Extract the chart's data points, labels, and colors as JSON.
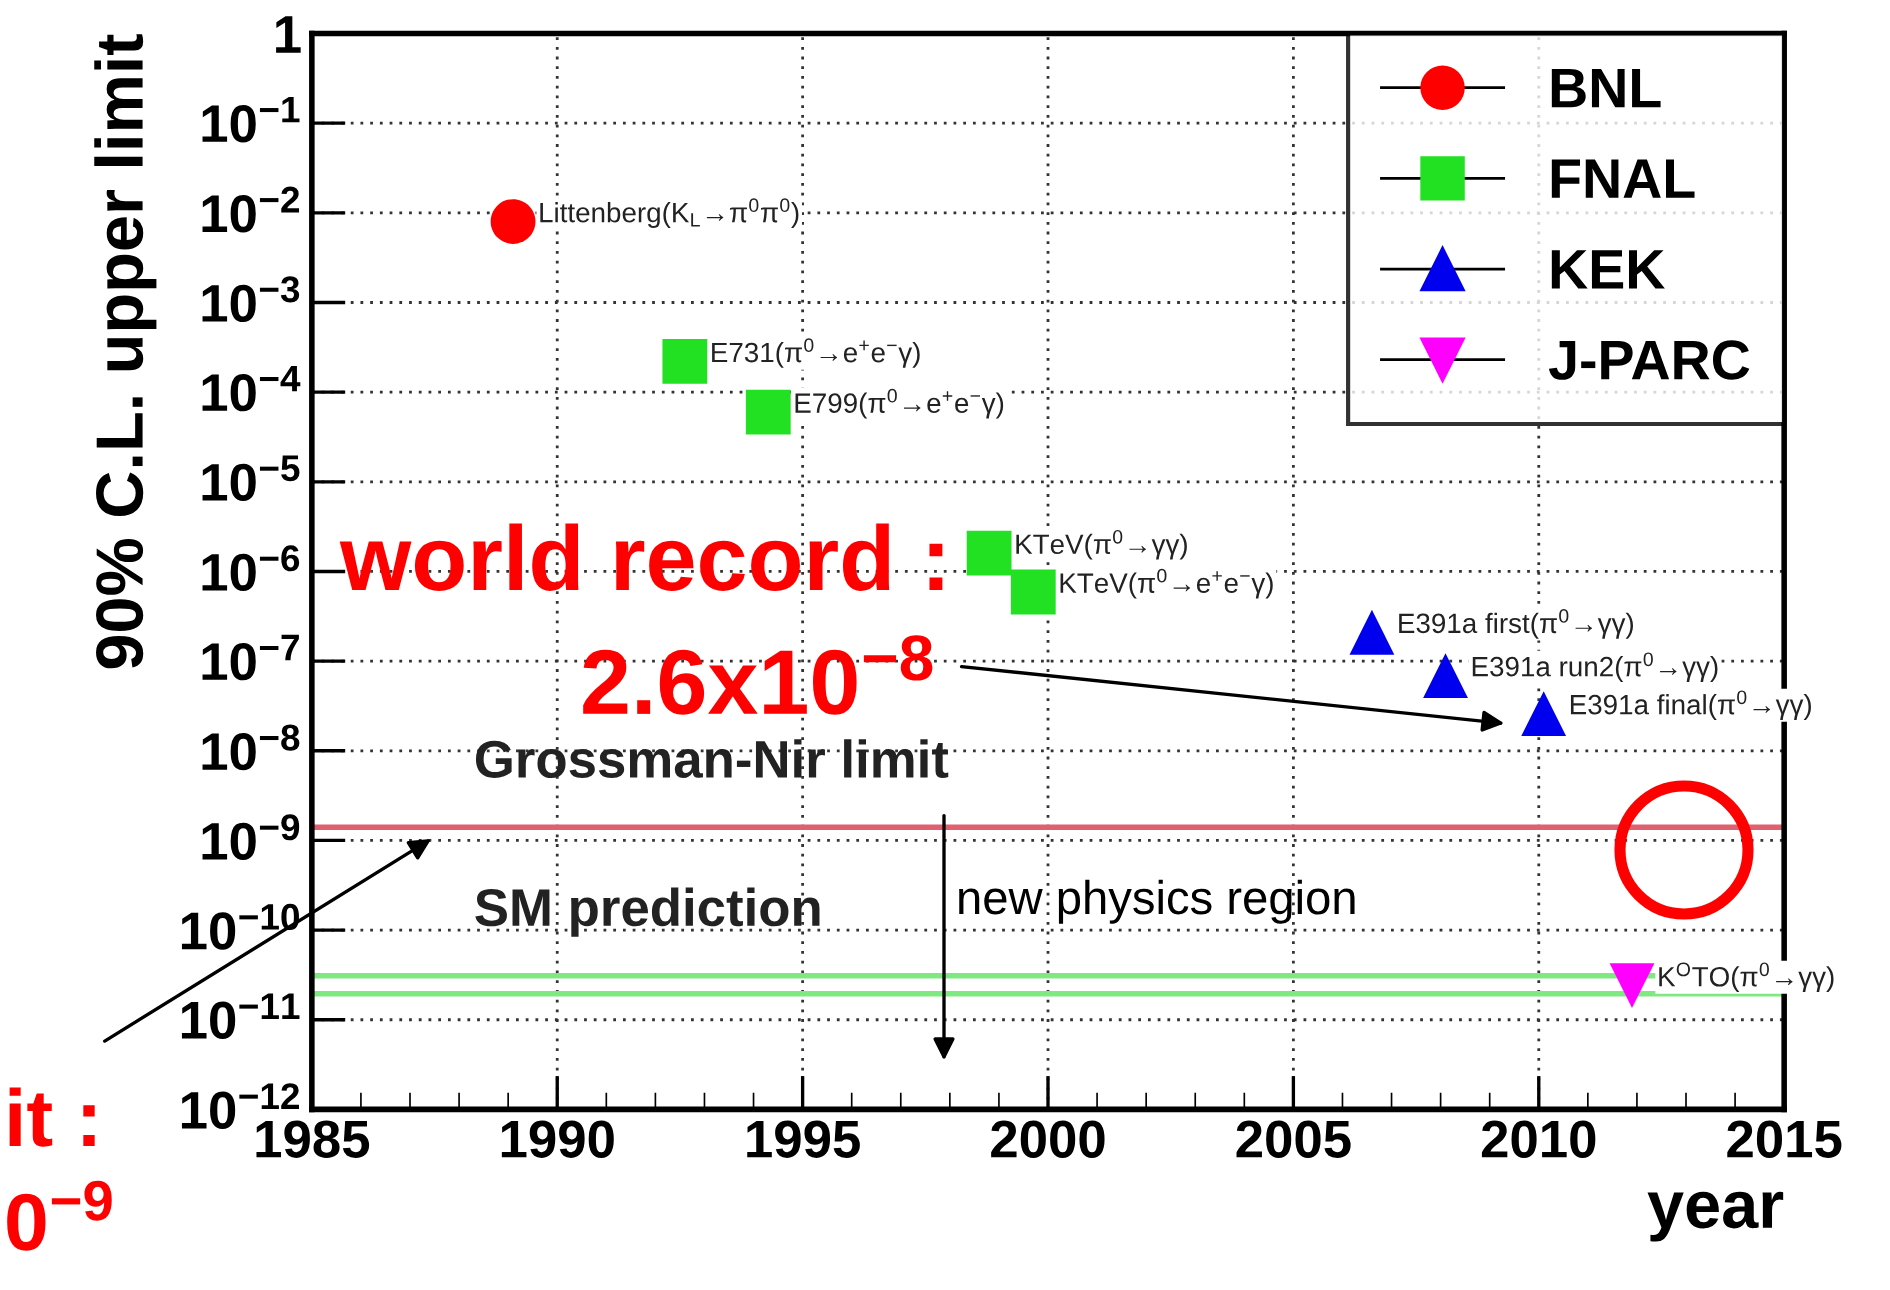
{
  "chart_data": {
    "type": "scatter",
    "xlabel": "year",
    "ylabel": "90% C.L. upper limit",
    "xlim": [
      1985,
      2015
    ],
    "xticks": [
      1985,
      1990,
      1995,
      2000,
      2005,
      2010,
      2015
    ],
    "log": "y",
    "ylim": [
      1e-12,
      1
    ],
    "yticks": [
      {
        "value": 1e-12,
        "label": "10$^{−12}$"
      },
      {
        "value": 1e-11,
        "label": "10$^{−11}$"
      },
      {
        "value": 1e-10,
        "label": "10$^{−10}$"
      },
      {
        "value": 1e-09,
        "label": "10$^{−9}$"
      },
      {
        "value": 1e-08,
        "label": "10$^{−8}$"
      },
      {
        "value": 1e-07,
        "label": "10$^{−7}$"
      },
      {
        "value": 1e-06,
        "label": "10$^{−6}$"
      },
      {
        "value": 1e-05,
        "label": "10$^{−5}$"
      },
      {
        "value": 0.0001,
        "label": "10$^{−4}$"
      },
      {
        "value": 0.001,
        "label": "10$^{−3}$"
      },
      {
        "value": 0.01,
        "label": "10$^{−2}$"
      },
      {
        "value": 0.1,
        "label": "10$^{−1}$"
      },
      {
        "value": 1,
        "label": "1"
      }
    ],
    "grid": true,
    "legend": "top right",
    "series": [
      {
        "name": "BNL",
        "color": "#ff0000",
        "marker": "circle",
        "x": [
          1989.1
        ],
        "values": [
          0.008
        ]
      },
      {
        "name": "FNAL",
        "color": "#22e022",
        "marker": "square",
        "x": [
          1992.6,
          1994.3,
          1998.8,
          1999.7
        ],
        "values": [
          0.00022,
          6e-05,
          1.6e-06,
          5.9e-07
        ]
      },
      {
        "name": "KEK",
        "color": "#0000ee",
        "marker": "triangle",
        "x": [
          2006.6,
          2008.1,
          2010.1
        ],
        "values": [
          2.1e-07,
          6.9e-08,
          2.6e-08
        ]
      },
      {
        "name": "J-PARC",
        "color": "#ff00ff",
        "marker": "triangle_down",
        "x": [
          2011.9
        ],
        "values": [
          2.4e-11
        ]
      }
    ],
    "ref_lines": [
      {
        "axis": "y",
        "value": 1.4e-09,
        "label": "Grossman-Nir limit",
        "color": "#e06070"
      },
      {
        "axis": "y",
        "value": 3.1e-11,
        "label": "SM prediction",
        "color": "#80e880"
      },
      {
        "axis": "y",
        "value": 1.95e-11,
        "label": null,
        "color": "#80e880"
      }
    ],
    "annotations": [
      {
        "text": "Littenberg(K$_{L}$→π$^{0}$π$^{0}$)",
        "x": 1989.1,
        "y": 0.008
      },
      {
        "text": "E731(π$^{0}$→e$^{+}$e$^{−}$γ)",
        "x": 1992.6,
        "y": 0.00022
      },
      {
        "text": "E799(π$^{0}$→e$^{+}$e$^{−}$γ)",
        "x": 1994.3,
        "y": 6e-05
      },
      {
        "text": "KTeV(π$^{0}$→γγ)",
        "x": 1998.8,
        "y": 1.6e-06
      },
      {
        "text": "KTeV(π$^{0}$→e$^{+}$e$^{−}$γ)",
        "x": 1999.7,
        "y": 5.9e-07
      },
      {
        "text": "E391a first(π$^{0}$→γγ)",
        "x": 2006.6,
        "y": 2.1e-07
      },
      {
        "text": "E391a run2(π$^{0}$→γγ)",
        "x": 2008.1,
        "y": 6.9e-08
      },
      {
        "text": "E391a final(π$^{0}$→γγ)",
        "x": 2010.1,
        "y": 2.6e-08
      },
      {
        "text": "K$^{O}$TO(π$^{0}$→γγ)",
        "x": 2011.9,
        "y": 2.4e-11
      },
      "world record :",
      "2.6x10$^{−8}$",
      "new physics region",
      "it :",
      "0$^{−9}$"
    ]
  }
}
